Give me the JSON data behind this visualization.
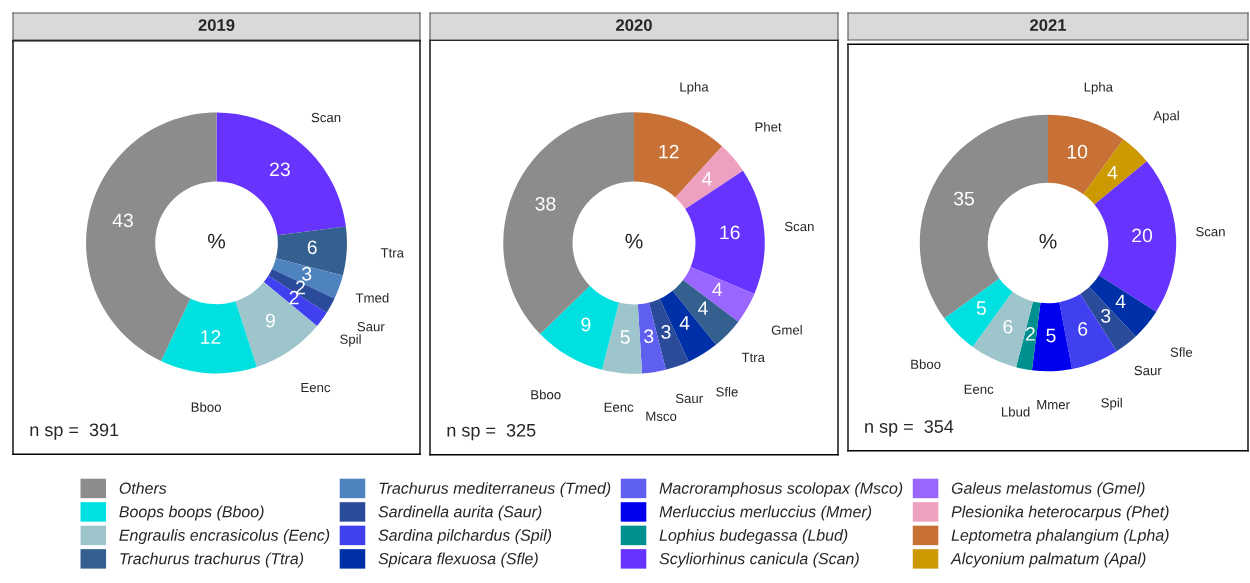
{
  "chart_data": [
    {
      "type": "donut",
      "title": "2019",
      "categories": [
        "Scan",
        "Ttra",
        "Tmed",
        "Saur",
        "Spil",
        "Eenc",
        "Bboo",
        null
      ],
      "values": [
        23,
        6,
        3,
        2,
        2,
        9,
        12,
        43
      ],
      "colors": [
        "#6633ff",
        "#34608f",
        "#4f83c0",
        "#2a4a9a",
        "#4040f0",
        "#9fc5cc",
        "#00e0e0",
        "#8c8c8c"
      ],
      "value_labels": [
        "23",
        "6",
        "3",
        "2",
        "2",
        "9",
        "12",
        "43"
      ],
      "annotations": [
        "%",
        "n sp =  391"
      ]
    },
    {
      "type": "donut",
      "title": "2020",
      "categories": [
        "Lpha",
        "Phet",
        "Scan",
        "Gmel",
        "Ttra",
        "Sfle",
        "Saur",
        "Msco",
        "Eenc",
        "Bboo",
        null
      ],
      "values": [
        12,
        4,
        16,
        4,
        4,
        4,
        3,
        3,
        5,
        9,
        38
      ],
      "colors": [
        "#c87137",
        "#eea0c0",
        "#6633ff",
        "#9966ff",
        "#34608f",
        "#0030a8",
        "#2a4a9a",
        "#6060f0",
        "#9fc5cc",
        "#00e0e0",
        "#8c8c8c"
      ],
      "value_labels": [
        "12",
        "4",
        "16",
        "4",
        "4",
        "4",
        "3",
        "3",
        "5",
        "9",
        "38"
      ],
      "annotations": [
        "%",
        "n sp =  325"
      ]
    },
    {
      "type": "donut",
      "title": "2021",
      "categories": [
        "Lpha",
        "Apal",
        "Scan",
        "Sfle",
        "Saur",
        "Spil",
        "Mmer",
        "Lbud",
        "Eenc",
        "Bboo",
        null
      ],
      "values": [
        10,
        4,
        20,
        4,
        3,
        6,
        5,
        2,
        6,
        5,
        35
      ],
      "colors": [
        "#c87137",
        "#cc9900",
        "#6633ff",
        "#0030a8",
        "#2a4a9a",
        "#4040f0",
        "#0000ee",
        "#00908f",
        "#9fc5cc",
        "#00e0e0",
        "#8c8c8c"
      ],
      "value_labels": [
        "10",
        "4",
        "20",
        "4",
        "3",
        "6",
        "5",
        "2",
        "6",
        "5",
        "35"
      ],
      "annotations": [
        "%",
        "n sp =  354"
      ]
    },
    {
      "type": "other",
      "legend": "bottom",
      "series": [
        {
          "name": "Others",
          "color": "#8c8c8c"
        },
        {
          "name": "Boops boops (Bboo)",
          "color": "#00e0e0"
        },
        {
          "name": "Engraulis encrasicolus (Eenc)",
          "color": "#9fc5cc"
        },
        {
          "name": "Trachurus trachurus (Ttra)",
          "color": "#34608f"
        },
        {
          "name": "Trachurus mediterraneus (Tmed)",
          "color": "#4f83c0"
        },
        {
          "name": "Sardinella aurita (Saur)",
          "color": "#2a4a9a"
        },
        {
          "name": "Sardina pilchardus (Spil)",
          "color": "#4040f0"
        },
        {
          "name": "Spicara flexuosa (Sfle)",
          "color": "#0030a8"
        },
        {
          "name": "Macroramphosus scolopax (Msco)",
          "color": "#6060f0"
        },
        {
          "name": "Merluccius merluccius (Mmer)",
          "color": "#0000ee"
        },
        {
          "name": "Lophius budegassa (Lbud)",
          "color": "#00908f"
        },
        {
          "name": "Scyliorhinus canicula (Scan)",
          "color": "#6633ff"
        },
        {
          "name": "Galeus melastomus (Gmel)",
          "color": "#9966ff"
        },
        {
          "name": "Plesionika heterocarpus (Phet)",
          "color": "#eea0c0"
        },
        {
          "name": "Leptometra phalangium (Lpha)",
          "color": "#c87137"
        },
        {
          "name": "Alcyonium palmatum (Apal)",
          "color": "#cc9900"
        }
      ]
    }
  ]
}
